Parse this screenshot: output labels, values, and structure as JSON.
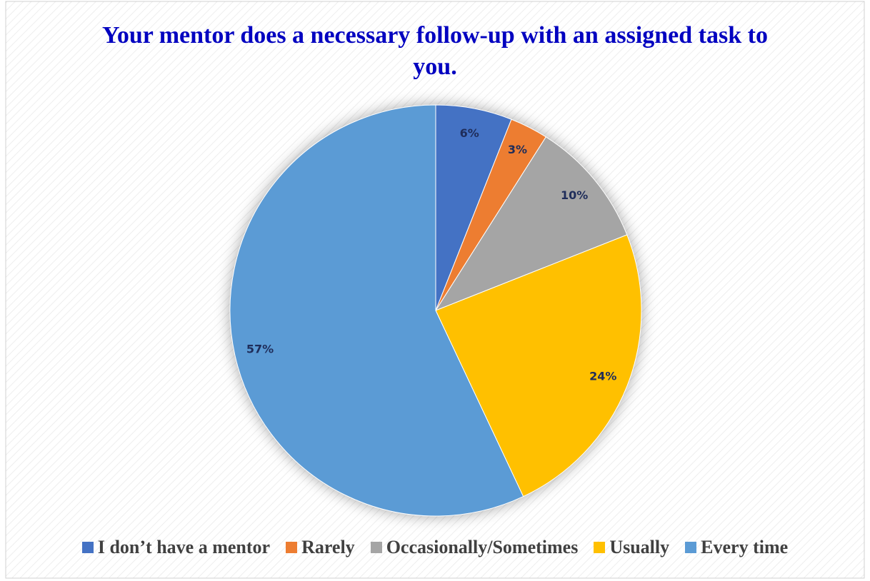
{
  "chart_data": {
    "type": "pie",
    "title": "Your mentor does a necessary follow-up with an assigned task to you.",
    "categories": [
      "I don’t have a mentor",
      "Rarely",
      "Occasionally/Sometimes",
      "Usually",
      "Every time"
    ],
    "values": [
      6,
      3,
      10,
      24,
      57
    ],
    "value_labels": [
      "6%",
      "3%",
      "10%",
      "24%",
      "57%"
    ],
    "colors": [
      "#4472c4",
      "#ed7d31",
      "#a5a5a5",
      "#ffc000",
      "#5b9bd5"
    ],
    "legend": "bottom"
  }
}
